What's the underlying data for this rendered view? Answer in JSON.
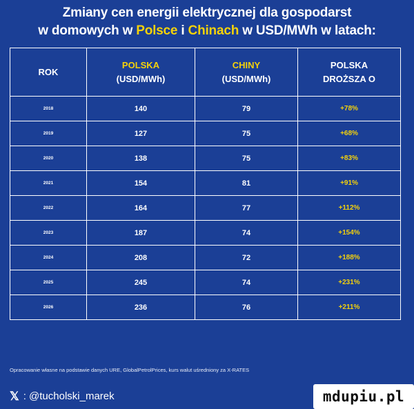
{
  "title": {
    "line1": "Zmiany cen energii elektrycznej dla gospodarst",
    "line2_a": "w domowych w ",
    "line2_polska": "Polsce",
    "line2_b": " i ",
    "line2_chiny": "Chinach",
    "line2_c": " w USD/MWh w latach:"
  },
  "colors": {
    "background": "#1b3f96",
    "accent": "#f5d20a",
    "text": "#ffffff"
  },
  "table": {
    "headers": {
      "rok": "ROK",
      "polska_1": "POLSKA",
      "polska_2": "(USD/MWh)",
      "chiny_1": "CHINY",
      "chiny_2": "(USD/MWh)",
      "drozsza_1": "POLSKA",
      "drozsza_2": "DROŻSZA O"
    },
    "rows": [
      {
        "year": "2018",
        "polska": "140",
        "chiny": "79",
        "diff": "+78%"
      },
      {
        "year": "2019",
        "polska": "127",
        "chiny": "75",
        "diff": "+68%"
      },
      {
        "year": "2020",
        "polska": "138",
        "chiny": "75",
        "diff": "+83%"
      },
      {
        "year": "2021",
        "polska": "154",
        "chiny": "81",
        "diff": "+91%"
      },
      {
        "year": "2022",
        "polska": "164",
        "chiny": "77",
        "diff": "+112%"
      },
      {
        "year": "2023",
        "polska": "187",
        "chiny": "74",
        "diff": "+154%"
      },
      {
        "year": "2024",
        "polska": "208",
        "chiny": "72",
        "diff": "+188%"
      },
      {
        "year": "2025",
        "polska": "245",
        "chiny": "74",
        "diff": "+231%"
      },
      {
        "year": "2026",
        "polska": "236",
        "chiny": "76",
        "diff": "+211%"
      }
    ]
  },
  "source": "Opracowanie własne na podstawie danych URE, GlobalPetrolPrices, kurs walut uśredniony za X-RATES",
  "handle": {
    "icon": "x-logo-icon",
    "text": ": @tucholski_marek"
  },
  "watermark": "mdupiu.pl"
}
